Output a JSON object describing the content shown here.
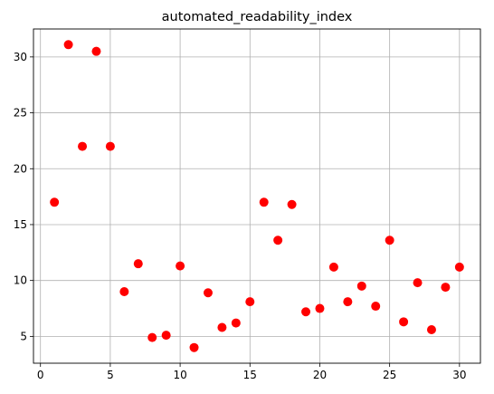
{
  "chart_data": {
    "type": "scatter",
    "title": "automated_readability_index",
    "xlabel": "",
    "ylabel": "",
    "xlim": [
      -0.5,
      31.5
    ],
    "ylim": [
      2.6,
      32.5
    ],
    "xticks": [
      0,
      5,
      10,
      15,
      20,
      25,
      30
    ],
    "yticks": [
      5,
      10,
      15,
      20,
      25,
      30
    ],
    "grid": true,
    "marker_color": "#ff0000",
    "series": [
      {
        "x": [
          1,
          2,
          3,
          4,
          5,
          6,
          7,
          8,
          9,
          10,
          11,
          12,
          13,
          14,
          15,
          16,
          17,
          18,
          19,
          20,
          21,
          22,
          23,
          24,
          25,
          26,
          27,
          28,
          29,
          30
        ],
        "y": [
          17.0,
          31.1,
          22.0,
          30.5,
          22.0,
          9.0,
          11.5,
          4.9,
          5.1,
          11.3,
          4.0,
          8.9,
          5.8,
          6.2,
          8.1,
          17.0,
          13.6,
          16.8,
          7.2,
          7.5,
          11.2,
          8.1,
          9.5,
          7.7,
          13.6,
          6.3,
          9.8,
          5.6,
          9.4,
          11.2
        ]
      }
    ]
  }
}
